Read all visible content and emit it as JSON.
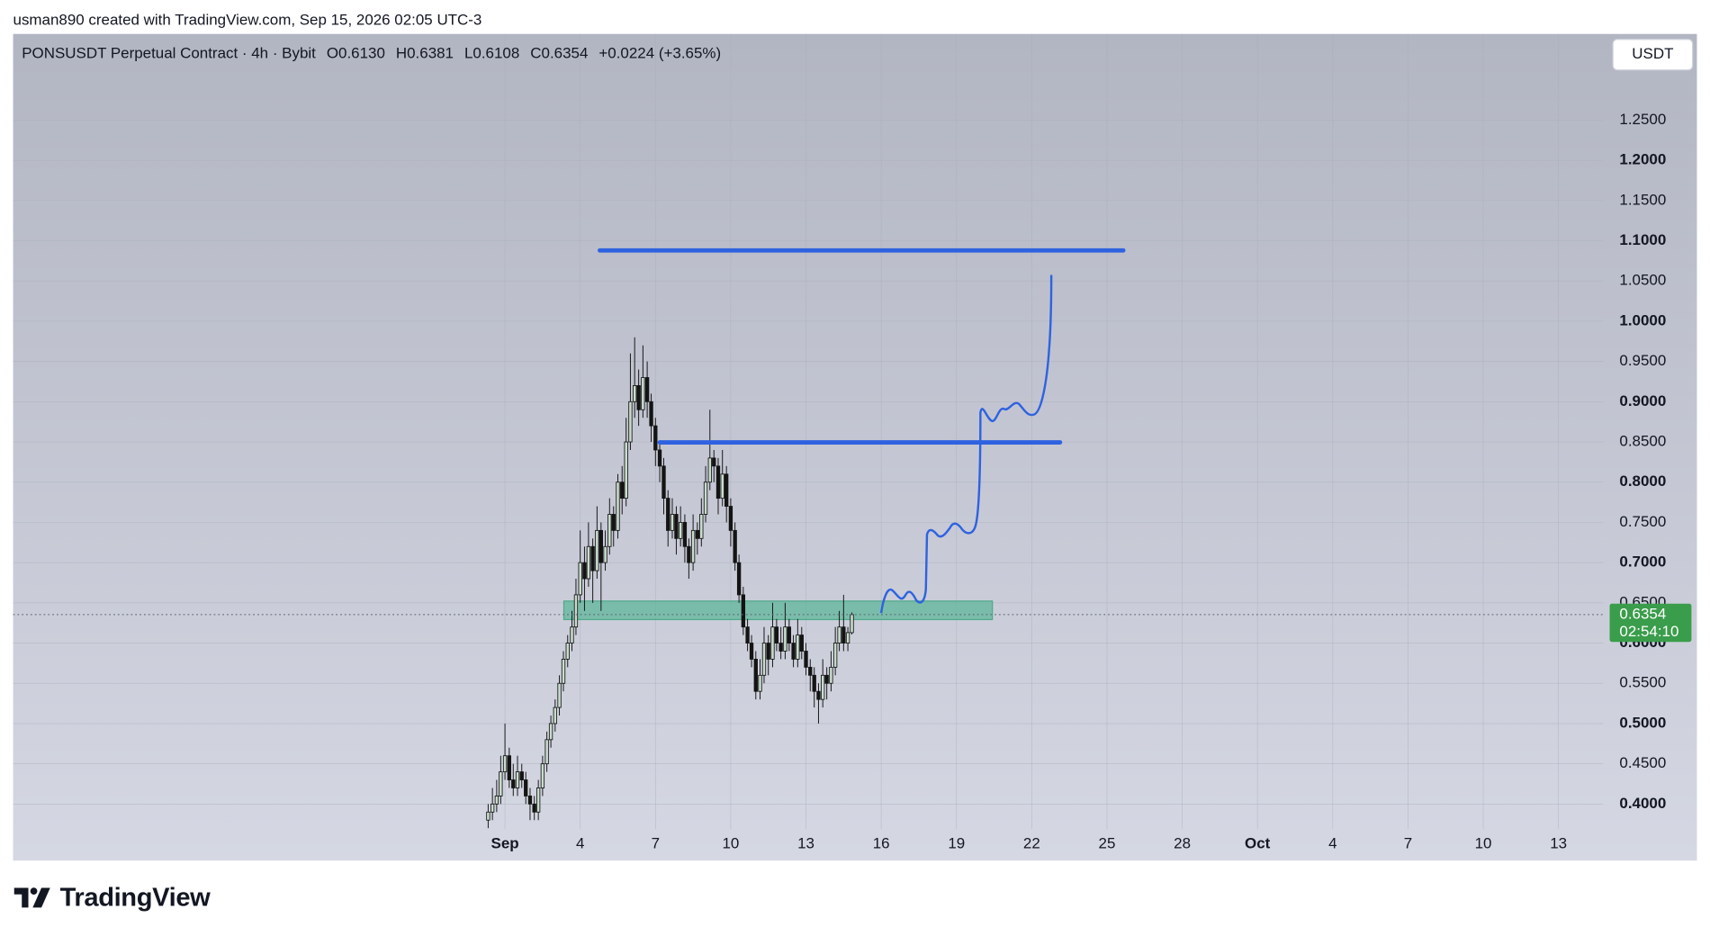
{
  "attribution": "usman890 created with TradingView.com, Sep 15, 2026 02:05 UTC-3",
  "logo_text": "TradingView",
  "currency_button": "USDT",
  "chart_data": {
    "type": "candlestick",
    "symbol": "PONSUSDT Perpetual Contract · 4h · Bybit",
    "header_values": [
      "O0.6130",
      "H0.6381",
      "L0.6108",
      "C0.6354",
      "+0.0224 (+3.65%)"
    ],
    "up_color": "#c9dccd",
    "down_color": "#141414",
    "wick_color": "#141414",
    "x": [
      -0.67,
      -0.5,
      -0.33,
      -0.17,
      0,
      0.17,
      0.33,
      0.5,
      0.67,
      0.83,
      1,
      1.17,
      1.33,
      1.5,
      1.67,
      1.83,
      2,
      2.17,
      2.33,
      2.5,
      2.67,
      2.83,
      3,
      3.17,
      3.33,
      3.5,
      3.67,
      3.83,
      4,
      4.17,
      4.33,
      4.5,
      4.67,
      4.83,
      5,
      5.17,
      5.33,
      5.5,
      5.67,
      5.83,
      6,
      6.17,
      6.33,
      6.5,
      6.67,
      6.83,
      7,
      7.17,
      7.33,
      7.5,
      7.67,
      7.83,
      8,
      8.17,
      8.33,
      8.5,
      8.67,
      8.83,
      9,
      9.17,
      9.33,
      9.5,
      9.67,
      9.83,
      10,
      10.17,
      10.33,
      10.5,
      10.67,
      10.83,
      11,
      11.17,
      11.33,
      11.5,
      11.67,
      11.83,
      12,
      12.17,
      12.33,
      12.5,
      12.67,
      12.83,
      13,
      13.17,
      13.33,
      13.5,
      13.67,
      13.83
    ],
    "ohlc": [
      [
        0.38,
        0.4,
        0.37,
        0.39
      ],
      [
        0.39,
        0.42,
        0.38,
        0.4
      ],
      [
        0.4,
        0.43,
        0.39,
        0.41
      ],
      [
        0.41,
        0.46,
        0.4,
        0.44
      ],
      [
        0.44,
        0.5,
        0.43,
        0.46
      ],
      [
        0.46,
        0.47,
        0.42,
        0.43
      ],
      [
        0.43,
        0.45,
        0.41,
        0.42
      ],
      [
        0.42,
        0.46,
        0.41,
        0.44
      ],
      [
        0.44,
        0.45,
        0.42,
        0.43
      ],
      [
        0.43,
        0.44,
        0.4,
        0.41
      ],
      [
        0.41,
        0.42,
        0.38,
        0.4
      ],
      [
        0.4,
        0.41,
        0.38,
        0.39
      ],
      [
        0.39,
        0.43,
        0.38,
        0.42
      ],
      [
        0.42,
        0.46,
        0.41,
        0.45
      ],
      [
        0.45,
        0.49,
        0.44,
        0.48
      ],
      [
        0.48,
        0.51,
        0.47,
        0.5
      ],
      [
        0.5,
        0.53,
        0.49,
        0.52
      ],
      [
        0.52,
        0.56,
        0.51,
        0.55
      ],
      [
        0.55,
        0.59,
        0.54,
        0.58
      ],
      [
        0.58,
        0.61,
        0.57,
        0.6
      ],
      [
        0.6,
        0.64,
        0.59,
        0.62
      ],
      [
        0.62,
        0.68,
        0.61,
        0.66
      ],
      [
        0.66,
        0.74,
        0.65,
        0.7
      ],
      [
        0.7,
        0.72,
        0.64,
        0.68
      ],
      [
        0.68,
        0.75,
        0.67,
        0.72
      ],
      [
        0.72,
        0.73,
        0.65,
        0.69
      ],
      [
        0.69,
        0.77,
        0.68,
        0.74
      ],
      [
        0.74,
        0.75,
        0.64,
        0.7
      ],
      [
        0.7,
        0.74,
        0.69,
        0.72
      ],
      [
        0.72,
        0.78,
        0.71,
        0.76
      ],
      [
        0.76,
        0.77,
        0.72,
        0.74
      ],
      [
        0.74,
        0.81,
        0.73,
        0.8
      ],
      [
        0.8,
        0.82,
        0.76,
        0.78
      ],
      [
        0.78,
        0.88,
        0.77,
        0.85
      ],
      [
        0.85,
        0.96,
        0.84,
        0.9
      ],
      [
        0.9,
        0.98,
        0.88,
        0.92
      ],
      [
        0.92,
        0.94,
        0.87,
        0.89
      ],
      [
        0.89,
        0.97,
        0.88,
        0.93
      ],
      [
        0.93,
        0.95,
        0.88,
        0.9
      ],
      [
        0.9,
        0.91,
        0.85,
        0.87
      ],
      [
        0.87,
        0.88,
        0.82,
        0.84
      ],
      [
        0.84,
        0.85,
        0.8,
        0.82
      ],
      [
        0.82,
        0.83,
        0.76,
        0.78
      ],
      [
        0.78,
        0.79,
        0.72,
        0.74
      ],
      [
        0.74,
        0.78,
        0.73,
        0.76
      ],
      [
        0.76,
        0.77,
        0.71,
        0.73
      ],
      [
        0.73,
        0.77,
        0.72,
        0.75
      ],
      [
        0.75,
        0.76,
        0.7,
        0.72
      ],
      [
        0.72,
        0.73,
        0.68,
        0.7
      ],
      [
        0.7,
        0.76,
        0.69,
        0.74
      ],
      [
        0.74,
        0.75,
        0.71,
        0.73
      ],
      [
        0.73,
        0.78,
        0.72,
        0.76
      ],
      [
        0.76,
        0.82,
        0.75,
        0.8
      ],
      [
        0.8,
        0.89,
        0.79,
        0.83
      ],
      [
        0.83,
        0.84,
        0.8,
        0.82
      ],
      [
        0.82,
        0.83,
        0.76,
        0.78
      ],
      [
        0.78,
        0.84,
        0.77,
        0.81
      ],
      [
        0.81,
        0.82,
        0.75,
        0.77
      ],
      [
        0.77,
        0.78,
        0.72,
        0.74
      ],
      [
        0.74,
        0.75,
        0.69,
        0.7
      ],
      [
        0.7,
        0.71,
        0.65,
        0.66
      ],
      [
        0.66,
        0.67,
        0.61,
        0.62
      ],
      [
        0.62,
        0.63,
        0.59,
        0.6
      ],
      [
        0.6,
        0.61,
        0.57,
        0.58
      ],
      [
        0.58,
        0.59,
        0.53,
        0.54
      ],
      [
        0.54,
        0.58,
        0.53,
        0.56
      ],
      [
        0.56,
        0.62,
        0.55,
        0.6
      ],
      [
        0.6,
        0.61,
        0.56,
        0.58
      ],
      [
        0.58,
        0.65,
        0.57,
        0.62
      ],
      [
        0.62,
        0.63,
        0.59,
        0.6
      ],
      [
        0.6,
        0.62,
        0.58,
        0.59
      ],
      [
        0.59,
        0.65,
        0.58,
        0.62
      ],
      [
        0.62,
        0.63,
        0.59,
        0.6
      ],
      [
        0.6,
        0.61,
        0.57,
        0.58
      ],
      [
        0.58,
        0.63,
        0.57,
        0.61
      ],
      [
        0.61,
        0.62,
        0.58,
        0.59
      ],
      [
        0.59,
        0.6,
        0.56,
        0.57
      ],
      [
        0.57,
        0.58,
        0.54,
        0.56
      ],
      [
        0.56,
        0.57,
        0.52,
        0.54
      ],
      [
        0.54,
        0.55,
        0.5,
        0.53
      ],
      [
        0.53,
        0.58,
        0.52,
        0.56
      ],
      [
        0.56,
        0.57,
        0.53,
        0.55
      ],
      [
        0.55,
        0.59,
        0.54,
        0.57
      ],
      [
        0.57,
        0.62,
        0.56,
        0.6
      ],
      [
        0.6,
        0.64,
        0.59,
        0.62
      ],
      [
        0.62,
        0.66,
        0.59,
        0.6
      ],
      [
        0.6,
        0.62,
        0.59,
        0.613
      ],
      [
        0.613,
        0.6381,
        0.6108,
        0.6354
      ]
    ],
    "xlim": [
      -19.61,
      43.78
    ],
    "xticks": [
      {
        "value": 0,
        "label": "Sep"
      },
      {
        "value": 3,
        "label": "4"
      },
      {
        "value": 6,
        "label": "7"
      },
      {
        "value": 9,
        "label": "10"
      },
      {
        "value": 12,
        "label": "13"
      },
      {
        "value": 15,
        "label": "16"
      },
      {
        "value": 18,
        "label": "19"
      },
      {
        "value": 21,
        "label": "22"
      },
      {
        "value": 24,
        "label": "25"
      },
      {
        "value": 27,
        "label": "28"
      },
      {
        "value": 30,
        "label": "Oct"
      },
      {
        "value": 33,
        "label": "4"
      },
      {
        "value": 36,
        "label": "7"
      },
      {
        "value": 39,
        "label": "10"
      },
      {
        "value": 42,
        "label": "13"
      }
    ],
    "ylim": [
      0.369,
      1.357
    ],
    "yticks": [
      {
        "value": 0.4,
        "label": "0.4000"
      },
      {
        "value": 0.45,
        "label": "0.4500"
      },
      {
        "value": 0.5,
        "label": "0.5000"
      },
      {
        "value": 0.55,
        "label": "0.5500"
      },
      {
        "value": 0.6,
        "label": "0.6000"
      },
      {
        "value": 0.65,
        "label": "0.6500"
      },
      {
        "value": 0.7,
        "label": "0.7000"
      },
      {
        "value": 0.75,
        "label": "0.7500"
      },
      {
        "value": 0.8,
        "label": "0.8000"
      },
      {
        "value": 0.85,
        "label": "0.8500"
      },
      {
        "value": 0.9,
        "label": "0.9000"
      },
      {
        "value": 0.95,
        "label": "0.9500"
      },
      {
        "value": 1.0,
        "label": "1.0000"
      },
      {
        "value": 1.05,
        "label": "1.0500"
      },
      {
        "value": 1.1,
        "label": "1.1000"
      },
      {
        "value": 1.15,
        "label": "1.1500"
      },
      {
        "value": 1.2,
        "label": "1.2000"
      },
      {
        "value": 1.25,
        "label": "1.2500"
      }
    ],
    "grid": true,
    "last_price": {
      "value": 0.6354,
      "label": "0.6354",
      "color": "#3a9d4b"
    },
    "countdown": "02:54:10"
  }
}
